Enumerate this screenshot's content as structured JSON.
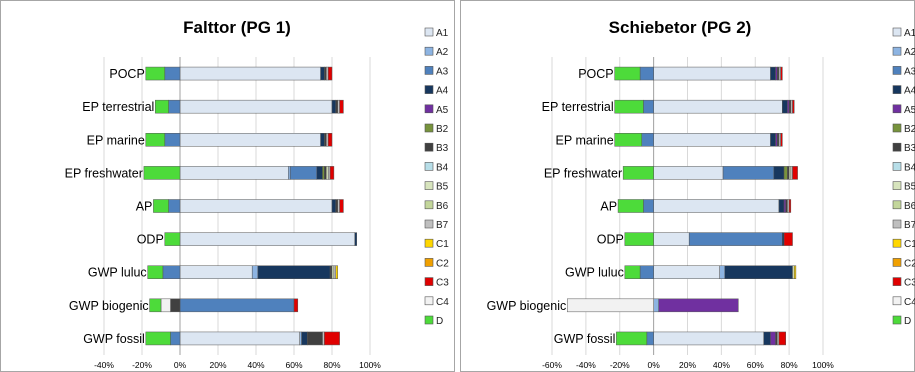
{
  "chart_data": [
    {
      "type": "bar",
      "orientation": "horizontal",
      "stacked": true,
      "title": "Falttor (PG 1)",
      "xlim": [
        -0.4,
        1.0
      ],
      "xticks": [
        "-40%",
        "-20%",
        "0%",
        "20%",
        "40%",
        "60%",
        "80%",
        "100%"
      ],
      "categories": [
        "POCP",
        "EP terrestrial",
        "EP marine",
        "EP freshwater",
        "AP",
        "ODP",
        "GWP luluc",
        "GWP biogenic",
        "GWP fossil"
      ],
      "series": [
        {
          "name": "A1",
          "color": "#dce6f2",
          "values": [
            0.74,
            0.8,
            0.74,
            0.57,
            0.8,
            0.92,
            0.38,
            0,
            0.63
          ]
        },
        {
          "name": "A2",
          "color": "#8db4e2",
          "values": [
            0,
            0,
            0,
            0.01,
            0,
            0,
            0.03,
            0,
            0.01
          ]
        },
        {
          "name": "A3",
          "color": "#4f81bd",
          "values": [
            -0.08,
            -0.06,
            -0.08,
            0.14,
            -0.06,
            0,
            -0.09,
            0.6,
            -0.05
          ]
        },
        {
          "name": "A4",
          "color": "#17375e",
          "values": [
            0.02,
            0.02,
            0.02,
            0.03,
            0.02,
            0.01,
            0.38,
            0,
            0.03
          ]
        },
        {
          "name": "A5",
          "color": "#7030a0",
          "values": [
            0,
            0,
            0,
            0,
            0,
            0,
            0,
            0,
            0
          ]
        },
        {
          "name": "B2",
          "color": "#77933c",
          "values": [
            0,
            0,
            0,
            0.01,
            0,
            0,
            0,
            0,
            0
          ]
        },
        {
          "name": "B3",
          "color": "#404040",
          "values": [
            0.01,
            0.01,
            0.01,
            0.01,
            0.01,
            0,
            0.01,
            -0.05,
            0.08
          ]
        },
        {
          "name": "B4",
          "color": "#b7dee8",
          "values": [
            0,
            0,
            0,
            0,
            0,
            0,
            0,
            0,
            0
          ]
        },
        {
          "name": "B5",
          "color": "#d7e4bd",
          "values": [
            0,
            0,
            0,
            0.01,
            0,
            0,
            0.01,
            0,
            0
          ]
        },
        {
          "name": "B6",
          "color": "#c3d69b",
          "values": [
            0,
            0,
            0,
            0,
            0,
            0,
            0,
            0,
            0
          ]
        },
        {
          "name": "B7",
          "color": "#bfbfbf",
          "values": [
            0.01,
            0.01,
            0.01,
            0.01,
            0.01,
            0,
            0.01,
            0,
            0.01
          ]
        },
        {
          "name": "C1",
          "color": "#ffd700",
          "values": [
            0,
            0,
            0,
            0,
            0,
            0,
            0.01,
            0,
            0
          ]
        },
        {
          "name": "C2",
          "color": "#f0a000",
          "values": [
            0,
            0,
            0,
            0,
            0,
            0,
            0,
            0,
            0
          ]
        },
        {
          "name": "C3",
          "color": "#e00000",
          "values": [
            0.02,
            0.02,
            0.02,
            0.02,
            0.02,
            0,
            0,
            0.02,
            0.08
          ]
        },
        {
          "name": "C4",
          "color": "#f2f2f2",
          "values": [
            0,
            0,
            0,
            0,
            0,
            0,
            0,
            -0.05,
            0
          ]
        },
        {
          "name": "D",
          "color": "#4ddb3a",
          "values": [
            -0.1,
            -0.07,
            -0.1,
            -0.19,
            -0.08,
            -0.08,
            -0.08,
            -0.06,
            -0.13
          ]
        }
      ]
    },
    {
      "type": "bar",
      "orientation": "horizontal",
      "stacked": true,
      "title": "Schiebetor (PG 2)",
      "xlim": [
        -0.6,
        1.0
      ],
      "xticks": [
        "-60%",
        "-40%",
        "-20%",
        "0%",
        "20%",
        "40%",
        "60%",
        "80%",
        "100%"
      ],
      "categories": [
        "POCP",
        "EP terrestrial",
        "EP marine",
        "EP freshwater",
        "AP",
        "ODP",
        "GWP luluc",
        "GWP biogenic",
        "GWP fossil"
      ],
      "series": [
        {
          "name": "A1",
          "color": "#dce6f2",
          "values": [
            0.69,
            0.76,
            0.69,
            0.41,
            0.74,
            0.21,
            0.39,
            0,
            0.65
          ]
        },
        {
          "name": "A2",
          "color": "#8db4e2",
          "values": [
            0,
            0,
            0,
            0,
            0,
            0,
            0.03,
            0.03,
            0
          ]
        },
        {
          "name": "A3",
          "color": "#4f81bd",
          "values": [
            -0.08,
            -0.06,
            -0.07,
            0.3,
            -0.06,
            0.55,
            -0.08,
            0,
            -0.04
          ]
        },
        {
          "name": "A4",
          "color": "#17375e",
          "values": [
            0.03,
            0.03,
            0.03,
            0.06,
            0.03,
            0.01,
            0.4,
            0,
            0.04
          ]
        },
        {
          "name": "A5",
          "color": "#7030a0",
          "values": [
            0.01,
            0.01,
            0.01,
            0,
            0.01,
            0,
            0,
            0.47,
            0.03
          ]
        },
        {
          "name": "B2",
          "color": "#77933c",
          "values": [
            0,
            0,
            0,
            0.02,
            0,
            0,
            0,
            0,
            0
          ]
        },
        {
          "name": "B3",
          "color": "#404040",
          "values": [
            0.01,
            0.01,
            0.01,
            0.01,
            0.01,
            0,
            0,
            0,
            0.01
          ]
        },
        {
          "name": "B4",
          "color": "#b7dee8",
          "values": [
            0,
            0,
            0,
            0,
            0,
            0,
            0,
            0,
            0
          ]
        },
        {
          "name": "B5",
          "color": "#d7e4bd",
          "values": [
            0,
            0,
            0,
            0.01,
            0,
            0,
            0.01,
            0,
            0
          ]
        },
        {
          "name": "B6",
          "color": "#c3d69b",
          "values": [
            0,
            0,
            0,
            0,
            0,
            0,
            0,
            0,
            0
          ]
        },
        {
          "name": "B7",
          "color": "#bfbfbf",
          "values": [
            0.01,
            0.01,
            0.01,
            0.01,
            0.01,
            0,
            0,
            0,
            0.01
          ]
        },
        {
          "name": "C1",
          "color": "#ffd700",
          "values": [
            0,
            0,
            0,
            0,
            0,
            0,
            0.01,
            0,
            0
          ]
        },
        {
          "name": "C2",
          "color": "#f0a000",
          "values": [
            0,
            0,
            0,
            0,
            0,
            0,
            0,
            0,
            0
          ]
        },
        {
          "name": "C3",
          "color": "#e00000",
          "values": [
            0.01,
            0.01,
            0.01,
            0.03,
            0.01,
            0.05,
            0,
            0,
            0.04
          ]
        },
        {
          "name": "C4",
          "color": "#f2f2f2",
          "values": [
            0,
            0,
            0,
            0,
            0,
            0,
            0,
            -0.51,
            0
          ]
        },
        {
          "name": "D",
          "color": "#4ddb3a",
          "values": [
            -0.15,
            -0.17,
            -0.16,
            -0.18,
            -0.15,
            -0.17,
            -0.09,
            0,
            -0.18
          ]
        }
      ]
    }
  ]
}
